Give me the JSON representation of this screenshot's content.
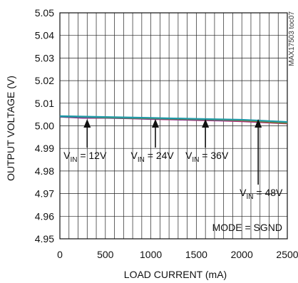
{
  "chart_data": {
    "type": "line",
    "title": "",
    "xlabel": "LOAD CURRENT (mA)",
    "ylabel": "OUTPUT VOLTAGE (V)",
    "xlim": [
      0,
      2500
    ],
    "ylim": [
      4.95,
      5.05
    ],
    "x_ticks": [
      0,
      500,
      1000,
      1500,
      2000,
      2500
    ],
    "x_tick_labels": [
      "0",
      "500",
      "1000",
      "1500",
      "2000",
      "2500"
    ],
    "y_ticks": [
      4.95,
      4.96,
      4.97,
      4.98,
      4.99,
      5.0,
      5.01,
      5.02,
      5.03,
      5.04,
      5.05
    ],
    "y_tick_labels": [
      "4.95",
      "4.96",
      "4.97",
      "4.98",
      "4.99",
      "5.00",
      "5.01",
      "5.02",
      "5.03",
      "5.04",
      "5.05"
    ],
    "grid": true,
    "series": [
      {
        "name": "VIN = 12V",
        "color": "#b03080",
        "x": [
          0,
          250,
          500,
          750,
          1000,
          1250,
          1500,
          1750,
          2000,
          2250,
          2500
        ],
        "y": [
          5.004,
          5.0035,
          5.0035,
          5.0033,
          5.003,
          5.0028,
          5.0025,
          5.0023,
          5.002,
          5.0015,
          5.001
        ]
      },
      {
        "name": "VIN = 24V",
        "color": "#3a55b0",
        "x": [
          0,
          250,
          500,
          750,
          1000,
          1250,
          1500,
          1750,
          2000,
          2250,
          2500
        ],
        "y": [
          5.004,
          5.0038,
          5.0036,
          5.0034,
          5.0032,
          5.003,
          5.0028,
          5.0026,
          5.0024,
          5.002,
          5.0015
        ]
      },
      {
        "name": "VIN = 36V",
        "color": "#7a7a30",
        "x": [
          0,
          250,
          500,
          750,
          1000,
          1250,
          1500,
          1750,
          2000,
          2250,
          2500
        ],
        "y": [
          5.0042,
          5.004,
          5.0037,
          5.0035,
          5.0033,
          5.0031,
          5.0029,
          5.0027,
          5.0024,
          5.0018,
          5.0012
        ]
      },
      {
        "name": "VIN = 48V",
        "color": "#1f9aa8",
        "x": [
          0,
          250,
          500,
          750,
          1000,
          1250,
          1500,
          1750,
          2000,
          2250,
          2500
        ],
        "y": [
          5.0043,
          5.0041,
          5.0039,
          5.0037,
          5.0035,
          5.0033,
          5.0031,
          5.0029,
          5.0027,
          5.0022,
          5.0017
        ]
      }
    ],
    "annotations": [
      {
        "sub": "IN",
        "suffix": " = 12V",
        "arrow_x": 300,
        "label_x": 40
      },
      {
        "sub": "IN",
        "suffix": " = 24V",
        "arrow_x": 1050,
        "label_x": 780
      },
      {
        "sub": "IN",
        "suffix": " = 36V",
        "arrow_x": 1600,
        "label_x": 1380
      },
      {
        "sub": "IN",
        "suffix": " = 48V",
        "arrow_x": 2180,
        "label_x": 2180
      }
    ],
    "mode_text": "MODE = SGND",
    "figure_code": "MAX17503 toc07"
  }
}
